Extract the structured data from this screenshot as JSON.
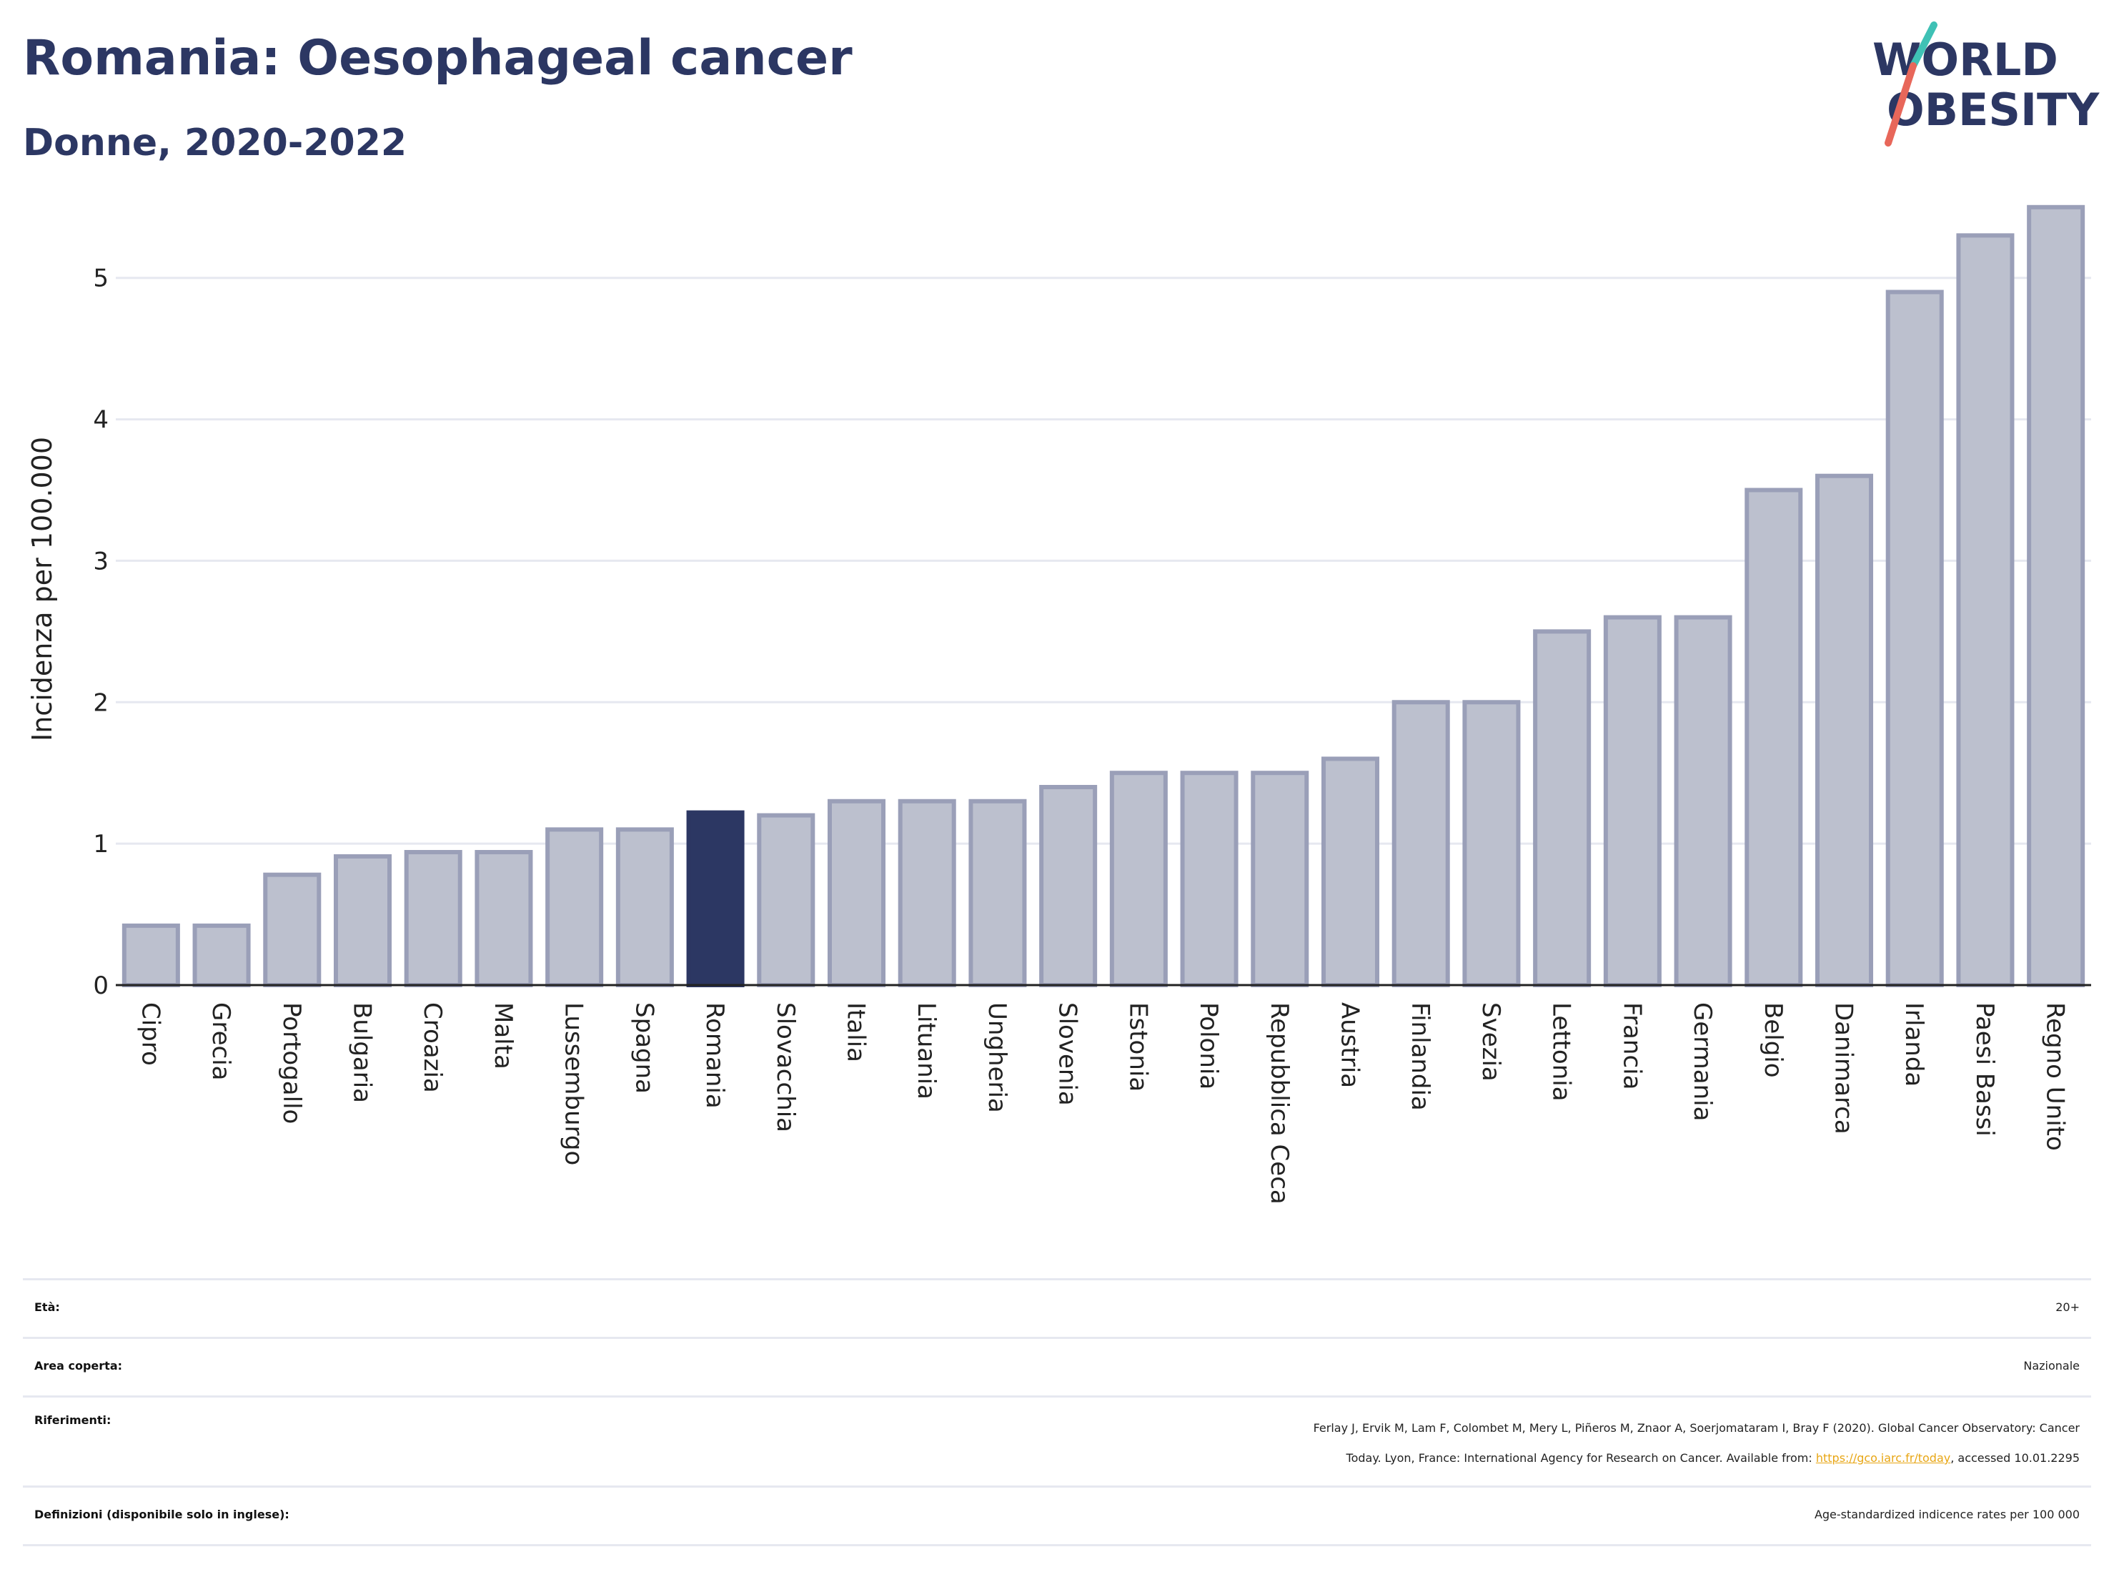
{
  "title": "Romania: Oesophageal cancer",
  "subtitle": "Donne, 2020-2022",
  "logo": {
    "line1": "WORLD",
    "line2": "OBESITY",
    "colors": {
      "text": "#2c3763",
      "slash_top": "#3fc1b5",
      "slash_bottom": "#e8675a"
    }
  },
  "colors": {
    "bar": "#bcc0ce",
    "bar_stroke": "#9a9fb8",
    "highlight": "#2c3763",
    "grid": "#e6e8f0",
    "axis": "#222222"
  },
  "chart_data": {
    "type": "bar",
    "title": "Romania: Oesophageal cancer",
    "subtitle": "Donne, 2020-2022",
    "xlabel": "",
    "ylabel": "Incidenza per 100.000",
    "ylim": [
      0,
      5.6
    ],
    "yticks": [
      0,
      1,
      2,
      3,
      4,
      5
    ],
    "grid": true,
    "highlight": "Romania",
    "categories": [
      "Cipro",
      "Grecia",
      "Portogallo",
      "Bulgaria",
      "Croazia",
      "Malta",
      "Lussemburgo",
      "Spagna",
      "Romania",
      "Slovacchia",
      "Italia",
      "Lituania",
      "Ungheria",
      "Slovenia",
      "Estonia",
      "Polonia",
      "Repubblica Ceca",
      "Austria",
      "Finlandia",
      "Svezia",
      "Lettonia",
      "Francia",
      "Germania",
      "Belgio",
      "Danimarca",
      "Irlanda",
      "Paesi Bassi",
      "Regno Unito"
    ],
    "values": [
      0.42,
      0.42,
      0.78,
      0.91,
      0.94,
      0.94,
      1.1,
      1.1,
      1.22,
      1.2,
      1.3,
      1.3,
      1.3,
      1.4,
      1.5,
      1.5,
      1.5,
      1.6,
      2.0,
      2.0,
      2.5,
      2.6,
      2.6,
      3.5,
      3.6,
      4.9,
      5.3,
      5.5
    ]
  },
  "meta": {
    "age_label": "Età:",
    "age_value": "20+",
    "area_label": "Area coperta:",
    "area_value": "Nazionale",
    "ref_label": "Riferimenti:",
    "ref_line1": "Ferlay J, Ervik M, Lam F, Colombet M, Mery L, Piñeros M, Znaor A, Soerjomataram I, Bray F (2020). Global Cancer Observatory: Cancer",
    "ref_line2_pre": "Today. Lyon, France: International Agency for Research on Cancer. Available from: ",
    "ref_link": "https://gco.iarc.fr/today",
    "ref_line2_post": ", accessed 10.01.2295",
    "def_label": "Definizioni (disponibile solo in inglese):",
    "def_value": "Age-standardized indicence rates per 100 000"
  }
}
